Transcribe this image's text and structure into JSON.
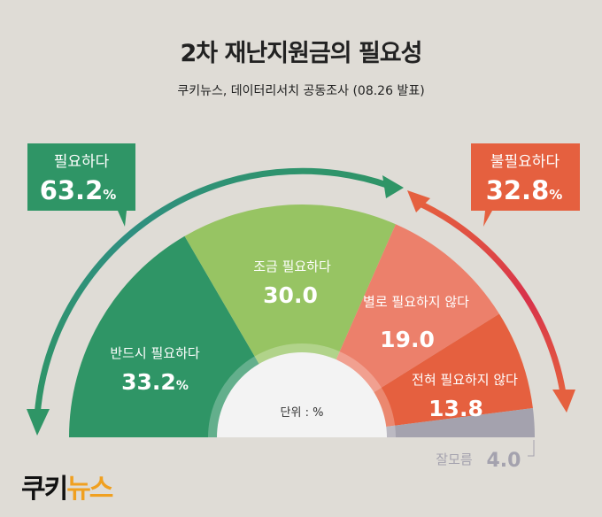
{
  "title": "2차 재난지원금의 필요성",
  "subtitle": "쿠키뉴스, 데이터리서치 공동조사 (08.26 발표)",
  "logo": {
    "part1": "쿠키",
    "part2": "뉴스",
    "colors": [
      "#111111",
      "#f0a020"
    ]
  },
  "chart_data": {
    "type": "pie",
    "shape": "semicircle-donut",
    "unit_label": "단위 : %",
    "slices": [
      {
        "label": "반드시 필요하다",
        "value": 33.2,
        "display": "33.2",
        "suffix": "%",
        "color": "#2f9566"
      },
      {
        "label": "조금 필요하다",
        "value": 30.0,
        "display": "30.0",
        "suffix": "",
        "color": "#97c463"
      },
      {
        "label": "별로 필요하지 않다",
        "value": 19.0,
        "display": "19.0",
        "suffix": "",
        "color": "#ec806b"
      },
      {
        "label": "전혀 필요하지 않다",
        "value": 13.8,
        "display": "13.8",
        "suffix": "",
        "color": "#e5603f"
      },
      {
        "label": "잘모름",
        "value": 4.0,
        "display": "4.0",
        "suffix": "",
        "color": "#a4a2ae"
      }
    ],
    "groups": [
      {
        "label": "필요하다",
        "value": "63.2",
        "suffix": "%",
        "color": "#2f9566"
      },
      {
        "label": "불필요하다",
        "value": "32.8",
        "suffix": "%",
        "color": "#e5603f"
      }
    ]
  }
}
